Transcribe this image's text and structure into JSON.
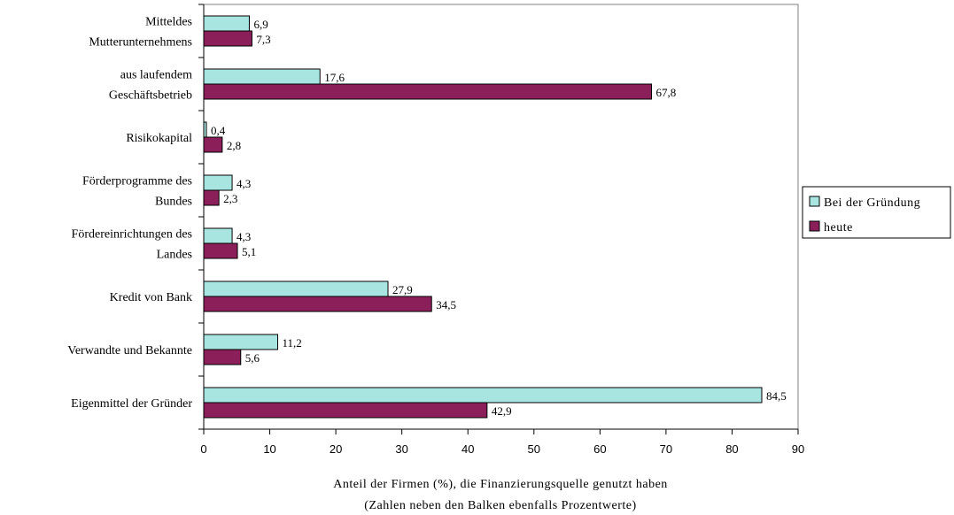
{
  "chart_data": {
    "type": "bar",
    "orientation": "horizontal",
    "categories": [
      [
        "Mitteldes",
        "Mutterunternehmens"
      ],
      [
        "aus laufendem",
        "Geschäftsbetrieb"
      ],
      [
        "Risikokapital"
      ],
      [
        "Förderprogramme des",
        "Bundes"
      ],
      [
        "Fördereinrichtungen des",
        "Landes"
      ],
      [
        "Kredit von Bank"
      ],
      [
        "Verwandte und Bekannte"
      ],
      [
        "Eigenmittel der Gründer"
      ]
    ],
    "series": [
      {
        "name": "Bei der Gründung",
        "color": "#a8e4e0",
        "values": [
          6.9,
          17.6,
          0.4,
          4.3,
          4.3,
          27.9,
          11.2,
          84.5
        ],
        "labels": [
          "6,9",
          "17,6",
          "0,4",
          "4,3",
          "4,3",
          "27,9",
          "11,2",
          "84,5"
        ]
      },
      {
        "name": "heute",
        "color": "#8a1f5a",
        "values": [
          7.3,
          67.8,
          2.8,
          2.3,
          5.1,
          34.5,
          5.6,
          42.9
        ],
        "labels": [
          "7,3",
          "67,8",
          "2,8",
          "2,3",
          "5,1",
          "34,5",
          "5,6",
          "42,9"
        ]
      }
    ],
    "xlim": [
      0,
      90
    ],
    "xticks": [
      "0",
      "10",
      "20",
      "30",
      "40",
      "50",
      "60",
      "70",
      "80",
      "90"
    ],
    "xlabel": "Anteil der Firmen (%), die Finanzierungsquelle genutzt haben",
    "xlabel_sub": "(Zahlen neben den Balken ebenfalls Prozentwerte)",
    "legend_position": "right",
    "grid": false
  }
}
